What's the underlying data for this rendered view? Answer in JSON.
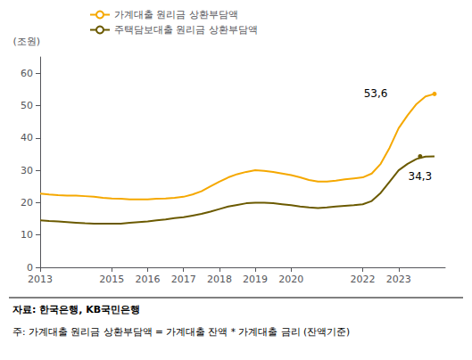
{
  "chart_data": {
    "type": "line",
    "ylabel": "(조원)",
    "source": "자료: 한국은행, KB국민은행",
    "note": "주: 가계대출 원리금 상환부담액 = 가계대출 잔액 * 가계대출 금리 (잔액기준)",
    "x": [
      2013.0,
      2013.25,
      2013.5,
      2013.75,
      2014.0,
      2014.25,
      2014.5,
      2014.75,
      2015.0,
      2015.25,
      2015.5,
      2015.75,
      2016.0,
      2016.25,
      2016.5,
      2016.75,
      2017.0,
      2017.25,
      2017.5,
      2017.75,
      2018.0,
      2018.25,
      2018.5,
      2018.75,
      2019.0,
      2019.25,
      2019.5,
      2019.75,
      2020.0,
      2020.25,
      2020.5,
      2020.75,
      2021.0,
      2021.25,
      2021.5,
      2021.75,
      2022.0,
      2022.25,
      2022.5,
      2022.75,
      2023.0,
      2023.25,
      2023.5,
      2023.75,
      2024.0
    ],
    "series": [
      {
        "name": "가계대출 원리금 상환부담액",
        "color": "#F5A800",
        "values": [
          22.8,
          22.5,
          22.3,
          22.2,
          22.2,
          22.0,
          21.8,
          21.5,
          21.3,
          21.2,
          21.0,
          21.0,
          21.0,
          21.2,
          21.3,
          21.5,
          21.8,
          22.5,
          23.5,
          25.0,
          26.5,
          27.8,
          28.8,
          29.5,
          30.0,
          29.8,
          29.5,
          29.0,
          28.5,
          27.8,
          27.0,
          26.5,
          26.5,
          26.8,
          27.2,
          27.5,
          27.8,
          29.0,
          32.0,
          37.0,
          43.0,
          47.0,
          50.5,
          52.8,
          53.6
        ],
        "annotation": {
          "text": "53,6",
          "x": 2024.0,
          "y": 53.6
        }
      },
      {
        "name": "주택담보대출 원리금 상환부담액",
        "color": "#6B5A00",
        "values": [
          14.5,
          14.3,
          14.2,
          14.0,
          13.8,
          13.6,
          13.5,
          13.5,
          13.5,
          13.5,
          13.8,
          14.0,
          14.2,
          14.5,
          14.8,
          15.2,
          15.5,
          16.0,
          16.5,
          17.2,
          18.0,
          18.8,
          19.3,
          19.8,
          20.0,
          20.0,
          19.8,
          19.5,
          19.2,
          18.8,
          18.5,
          18.3,
          18.5,
          18.8,
          19.0,
          19.2,
          19.5,
          20.5,
          23.0,
          26.5,
          30.0,
          32.0,
          33.5,
          34.2,
          34.3
        ],
        "annotation": {
          "text": "34,3",
          "x": 2023.6,
          "y": 34.3
        }
      }
    ],
    "xlim": [
      2013,
      2024.3
    ],
    "xticks": [
      2013,
      2015,
      2016,
      2017,
      2018,
      2019,
      2020,
      2022,
      2023
    ],
    "ylim": [
      0,
      65
    ],
    "yticks": [
      0,
      10,
      20,
      30,
      40,
      50,
      60
    ],
    "grid": false,
    "legend": "upper left"
  }
}
